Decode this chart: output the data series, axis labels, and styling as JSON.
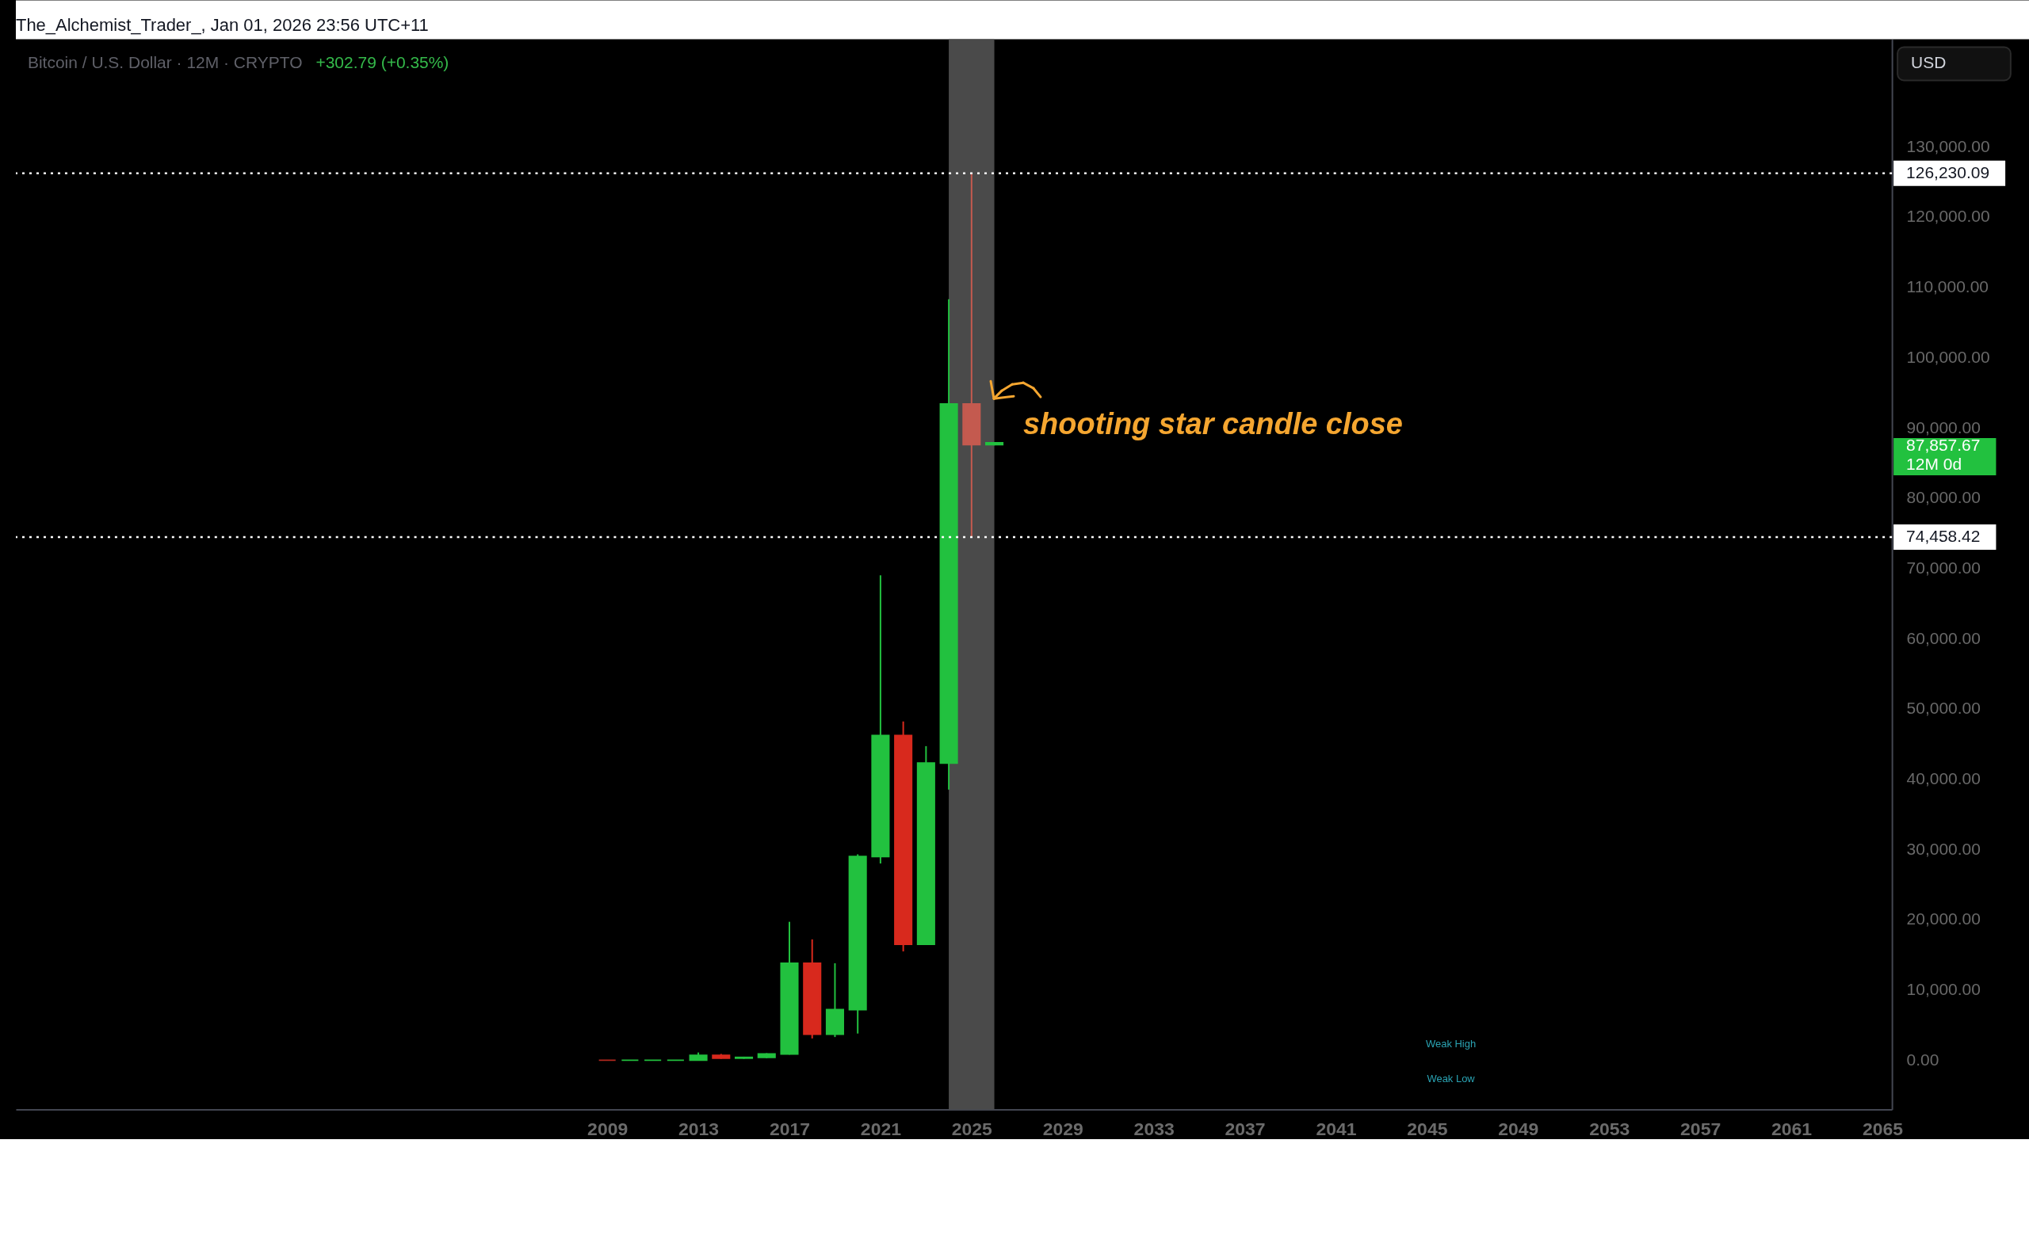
{
  "chart_data": {
    "type": "candlestick",
    "title": "Bitcoin / U.S. Dollar · 12M · CRYPTO",
    "subtitle": "+302.79 (+0.35%)",
    "ylabel": "USD",
    "x": [
      2009,
      2010,
      2011,
      2012,
      2013,
      2014,
      2015,
      2016,
      2017,
      2018,
      2019,
      2020,
      2021,
      2022,
      2023,
      2024,
      2025,
      2026
    ],
    "ohlc": [
      [
        0,
        0,
        0,
        0
      ],
      [
        0,
        0,
        0,
        0
      ],
      [
        0,
        0,
        0,
        0
      ],
      [
        0,
        0,
        0,
        0
      ],
      [
        0,
        1100,
        0,
        700
      ],
      [
        700,
        900,
        200,
        300
      ],
      [
        300,
        500,
        200,
        400
      ],
      [
        400,
        1000,
        300,
        900
      ],
      [
        900,
        19700,
        800,
        13800
      ],
      [
        13800,
        17200,
        3100,
        3700
      ],
      [
        3700,
        13800,
        3300,
        7200
      ],
      [
        7200,
        29300,
        3800,
        29000
      ],
      [
        29000,
        69000,
        28000,
        46200
      ],
      [
        46200,
        48200,
        15500,
        16500
      ],
      [
        16500,
        44700,
        16500,
        42300
      ],
      [
        42300,
        108300,
        38500,
        93400
      ],
      [
        93400,
        126230.09,
        74458.42,
        87600
      ],
      [
        87600,
        87900,
        87500,
        87857.67
      ]
    ],
    "colors": [
      "#b3281f",
      "#22c13f",
      "#22c13f",
      "#22c13f",
      "#22c13f",
      "#d8291d",
      "#22c13f",
      "#22c13f",
      "#22c13f",
      "#d8291d",
      "#22c13f",
      "#22c13f",
      "#22c13f",
      "#d8291d",
      "#22c13f",
      "#22c13f",
      "#c45a4f",
      "#22c13f"
    ],
    "xlim": [
      1983.2,
      2065.25
    ],
    "ylim": [
      -7000,
      145300
    ],
    "xticks": [
      2009,
      2013,
      2017,
      2021,
      2025,
      2029,
      2033,
      2037,
      2041,
      2045,
      2049,
      2053,
      2057,
      2061,
      2065
    ],
    "yticks": [
      {
        "value": 0,
        "label": "0.00"
      },
      {
        "value": 10000,
        "label": "10,000.00"
      },
      {
        "value": 20000,
        "label": "20,000.00"
      },
      {
        "value": 30000,
        "label": "30,000.00"
      },
      {
        "value": 40000,
        "label": "40,000.00"
      },
      {
        "value": 50000,
        "label": "50,000.00"
      },
      {
        "value": 60000,
        "label": "60,000.00"
      },
      {
        "value": 70000,
        "label": "70,000.00"
      },
      {
        "value": 80000,
        "label": "80,000.00"
      },
      {
        "value": 90000,
        "label": "90,000.00"
      },
      {
        "value": 100000,
        "label": "100,000.00"
      },
      {
        "value": 110000,
        "label": "110,000.00"
      },
      {
        "value": 120000,
        "label": "120,000.00"
      },
      {
        "value": 130000,
        "label": "130,000.00"
      }
    ],
    "ref_lines": [
      {
        "axis": "y",
        "value": 126230.09,
        "label": "126,230.09",
        "color": "#ffffff",
        "line_style": "dotted"
      },
      {
        "axis": "y",
        "value": 74458.42,
        "label": "74,458.42",
        "color": "#ffffff",
        "line_style": "dotted"
      }
    ],
    "bands": [
      {
        "axis": "x",
        "from": 2024,
        "to": 2026,
        "color": "#4a4a4a"
      }
    ],
    "annotations": [
      "The_Alchemist_Trader_, Jan 01, 2026 23:56 UTC+11",
      "shooting star candle close",
      "Weak High",
      "Weak Low",
      "87,857.67\n12M 0d"
    ]
  }
}
